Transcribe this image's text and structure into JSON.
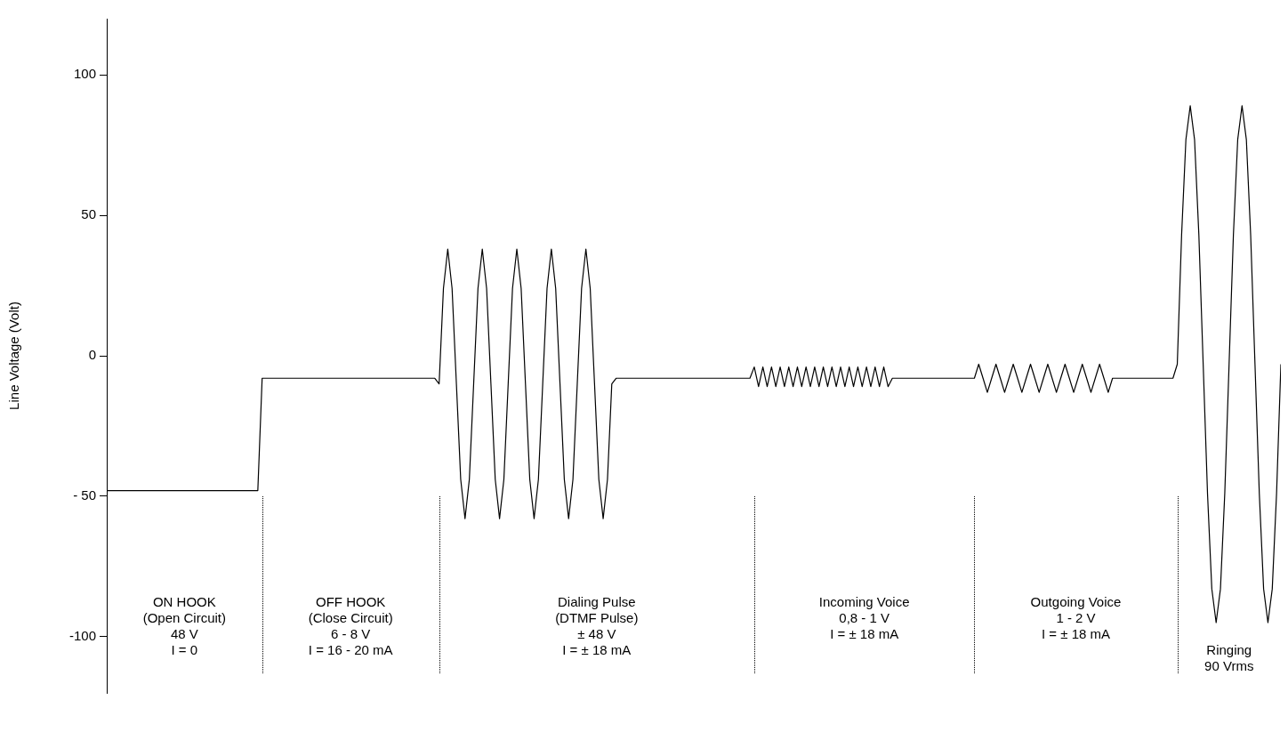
{
  "chart_data": {
    "type": "line",
    "ylabel": "Line Voltage (Volt)",
    "ylim": [
      -120,
      120
    ],
    "yticks": [
      {
        "value": 100,
        "label": "100"
      },
      {
        "value": 50,
        "label": "50"
      },
      {
        "value": 0,
        "label": "0"
      },
      {
        "value": -50,
        "label": "- 50"
      },
      {
        "value": -100,
        "label": "-100"
      }
    ],
    "tick_labels": "y",
    "grid": false,
    "marker": "none",
    "line_style": "solid",
    "categories": [
      null,
      null,
      null,
      null,
      null,
      null,
      null,
      null,
      null,
      null,
      null,
      null,
      null,
      null,
      null,
      null,
      null,
      null,
      null,
      null,
      null,
      null,
      null,
      null,
      null,
      null,
      null,
      null,
      null,
      null,
      null,
      null,
      null,
      null,
      null,
      null,
      null,
      null,
      null,
      null,
      null,
      null,
      null,
      null,
      null,
      null,
      null,
      null,
      null,
      null,
      null,
      null,
      null,
      null,
      null,
      null,
      null,
      null,
      null,
      null,
      null,
      null,
      null,
      null,
      null,
      null,
      null,
      null,
      null,
      null,
      null,
      null,
      null,
      null,
      null,
      null,
      null,
      null,
      null,
      null,
      null,
      null,
      null,
      null,
      null,
      null,
      null,
      null,
      null,
      null,
      null,
      null,
      null,
      null,
      null,
      null,
      null,
      null,
      null,
      null,
      null,
      null,
      null,
      null,
      null,
      null,
      null,
      null,
      null,
      null,
      null,
      null,
      null,
      null,
      null,
      null,
      null,
      null,
      null,
      null,
      null,
      null,
      null,
      null,
      null,
      null,
      null,
      null,
      null,
      null,
      null,
      null,
      null,
      null,
      null,
      null,
      null,
      null,
      null,
      null,
      null,
      null,
      null,
      null,
      null,
      null,
      null,
      null,
      null,
      null,
      null,
      null,
      null,
      null,
      null,
      null,
      null,
      null,
      null,
      null,
      null,
      null,
      null,
      null,
      null,
      null,
      null,
      null,
      null,
      null,
      null,
      null,
      null,
      null,
      null,
      null,
      null,
      null,
      null,
      null,
      null,
      null,
      null,
      null,
      null,
      null,
      null,
      null,
      null,
      null,
      null,
      null,
      null,
      null,
      null,
      null,
      null,
      null,
      null,
      null,
      null,
      null,
      null,
      null,
      null,
      null,
      null,
      null,
      null,
      null,
      null,
      null,
      null,
      null,
      null,
      null,
      null,
      null,
      null,
      null,
      null,
      null,
      null,
      null,
      null,
      null,
      null,
      null,
      null,
      null,
      null,
      null,
      null,
      null,
      null,
      null,
      null,
      null,
      null,
      null,
      null,
      null,
      null,
      null,
      null,
      null,
      null,
      null,
      null,
      null,
      null,
      null,
      null,
      null,
      null,
      null,
      null,
      null,
      null,
      null,
      null,
      null,
      null,
      null,
      null,
      null,
      null,
      null,
      null,
      null,
      null,
      null,
      null
    ],
    "series": [
      {
        "color": "#000000",
        "values": [
          -48,
          -48,
          -48,
          -48,
          -48,
          -48,
          -48,
          -48,
          -48,
          -48,
          -48,
          -48,
          -48,
          -48,
          -48,
          -48,
          -48,
          -48,
          -48,
          -48,
          -48,
          -48,
          -48,
          -48,
          -48,
          -48,
          -48,
          -48,
          -48,
          -48,
          -48,
          -48,
          -48,
          -48,
          -48,
          -48,
          -8,
          -8,
          -8,
          -8,
          -8,
          -8,
          -8,
          -8,
          -8,
          -8,
          -8,
          -8,
          -8,
          -8,
          -8,
          -8,
          -8,
          -8,
          -8,
          -8,
          -8,
          -8,
          -8,
          -8,
          -8,
          -8,
          -8,
          -8,
          -8,
          -8,
          -8,
          -8,
          -8,
          -8,
          -8,
          -8,
          -8,
          -8,
          -8,
          -8,
          -8,
          -10,
          24,
          38,
          24,
          -10,
          -44,
          -58,
          -44,
          -10,
          24,
          38,
          24,
          -10,
          -44,
          -58,
          -44,
          -10,
          24,
          38,
          24,
          -10,
          -44,
          -58,
          -44,
          -10,
          24,
          38,
          24,
          -10,
          -44,
          -58,
          -44,
          -10,
          24,
          38,
          24,
          -10,
          -44,
          -58,
          -44,
          -10,
          -8,
          -8,
          -8,
          -8,
          -8,
          -8,
          -8,
          -8,
          -8,
          -8,
          -8,
          -8,
          -8,
          -8,
          -8,
          -8,
          -8,
          -8,
          -8,
          -8,
          -8,
          -8,
          -8,
          -8,
          -8,
          -8,
          -8,
          -8,
          -8,
          -8,
          -8,
          -8,
          -4,
          -11,
          -4,
          -11,
          -4,
          -11,
          -4,
          -11,
          -4,
          -11,
          -4,
          -11,
          -4,
          -11,
          -4,
          -11,
          -4,
          -11,
          -4,
          -11,
          -4,
          -11,
          -4,
          -11,
          -4,
          -11,
          -4,
          -11,
          -4,
          -11,
          -4,
          -11,
          -8,
          -8,
          -8,
          -8,
          -8,
          -8,
          -8,
          -8,
          -8,
          -8,
          -8,
          -8,
          -8,
          -8,
          -8,
          -8,
          -8,
          -8,
          -8,
          -8,
          -3,
          -8,
          -13,
          -8,
          -3,
          -8,
          -13,
          -8,
          -3,
          -8,
          -13,
          -8,
          -3,
          -8,
          -13,
          -8,
          -3,
          -8,
          -13,
          -8,
          -3,
          -8,
          -13,
          -8,
          -3,
          -8,
          -13,
          -8,
          -3,
          -8,
          -13,
          -8,
          -8,
          -8,
          -8,
          -8,
          -8,
          -8,
          -8,
          -8,
          -8,
          -8,
          -8,
          -8,
          -8,
          -8,
          -3,
          43,
          77,
          89,
          77,
          43,
          -3,
          -49,
          -83,
          -95,
          -83,
          -49,
          -3,
          43,
          77,
          89,
          77,
          43,
          -3,
          -49,
          -83,
          -95,
          -83,
          -49,
          -3
        ]
      }
    ],
    "annotations": [
      "ON HOOK\n(Open Circuit)\n48 V\nI = 0",
      "OFF HOOK\n(Close Circuit)\n6 - 8 V\nI = 16 - 20 mA",
      "Dialing Pulse\n(DTMF Pulse)\n± 48 V\nI = ± 18  mA",
      "Incoming Voice\n0,8 - 1 V\nI = ± 18  mA",
      "Outgoing Voice\n1 - 2 V\nI = ± 18  mA",
      "Ringing\n90 Vrms"
    ]
  }
}
